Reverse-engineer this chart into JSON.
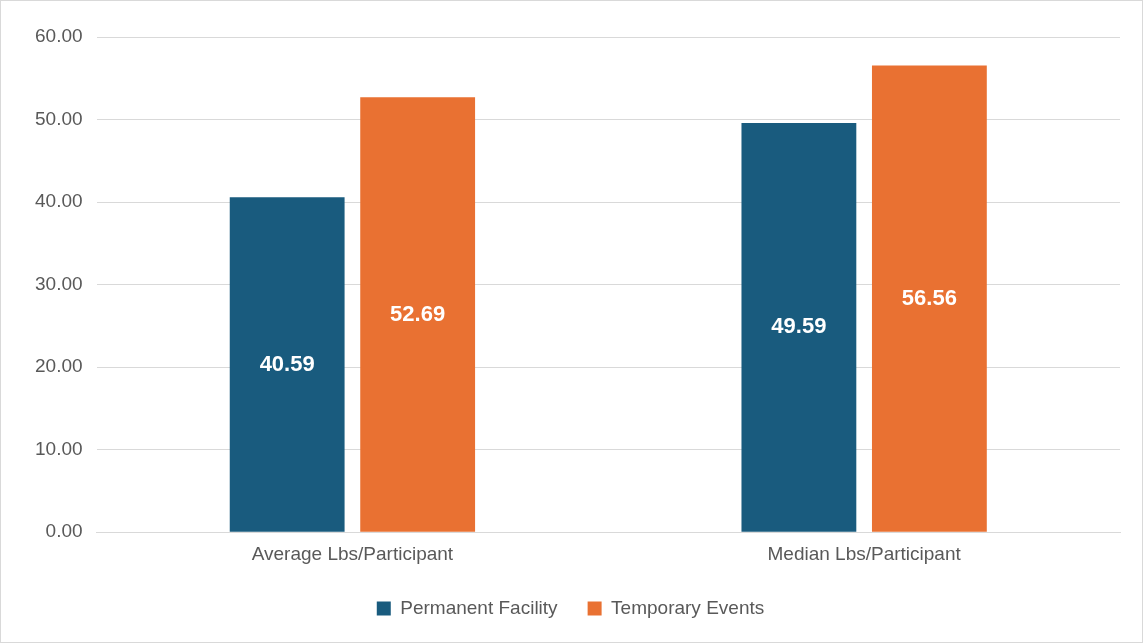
{
  "chart_data": {
    "type": "bar",
    "categories": [
      "Average Lbs/Participant",
      "Median Lbs/Participant"
    ],
    "series": [
      {
        "name": "Permanent Facility",
        "color": "#195b7e",
        "values": [
          40.59,
          49.59
        ]
      },
      {
        "name": "Temporary Events",
        "color": "#e97132",
        "values": [
          52.69,
          56.56
        ]
      }
    ],
    "ylim": [
      0,
      60
    ],
    "yticks": [
      {
        "value": 0,
        "label": "0.00"
      },
      {
        "value": 10,
        "label": "10.00"
      },
      {
        "value": 20,
        "label": "20.00"
      },
      {
        "value": 30,
        "label": "30.00"
      },
      {
        "value": 40,
        "label": "40.00"
      },
      {
        "value": 50,
        "label": "50.00"
      },
      {
        "value": 60,
        "label": "60.00"
      }
    ],
    "grid": "y",
    "legend": "bottom",
    "data_labels": true
  }
}
